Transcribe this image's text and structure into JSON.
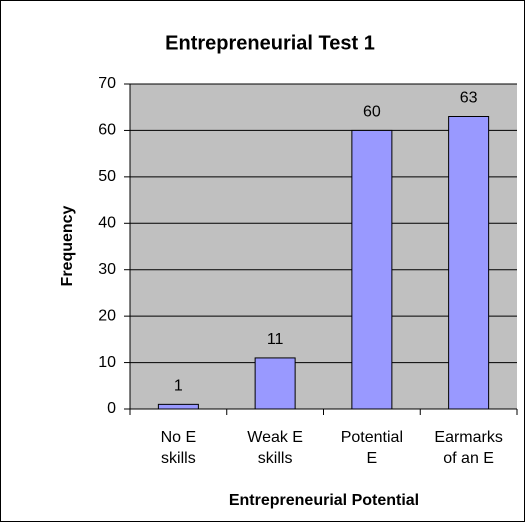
{
  "chart_data": {
    "type": "bar",
    "title": "Entrepreneurial Test 1",
    "x_label": "Entrepreneurial Potential",
    "y_label": "Frequency",
    "categories": [
      "No E\nskills",
      "Weak E\nskills",
      "Potential\nE",
      "Earmarks\nof an E"
    ],
    "values": [
      1,
      11,
      60,
      63
    ],
    "color": "#9999ff",
    "ylim": [
      0,
      70
    ],
    "yticks": [
      0,
      10,
      20,
      30,
      40,
      50,
      60,
      70
    ],
    "grid": true
  }
}
